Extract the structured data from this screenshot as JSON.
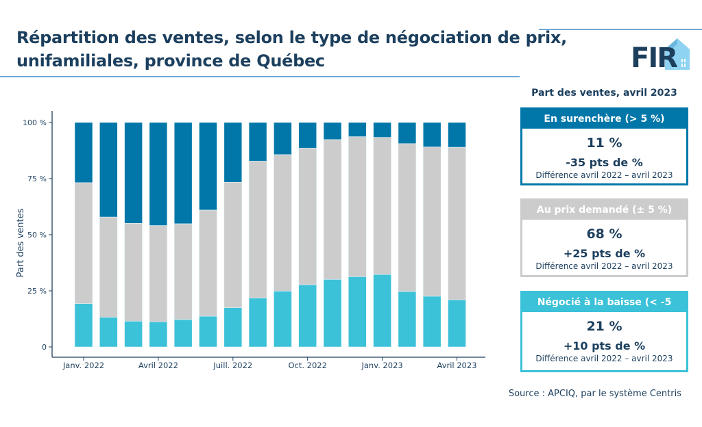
{
  "title_line1": "Répartition des ventes, selon le type de négociation de prix,",
  "title_line2": "unifamiliales, province de Québec",
  "logo_text": "FIR",
  "panel": {
    "title": "Part des ventes, avril 2023",
    "boxes": [
      {
        "header": "En surenchère (> 5 %)",
        "value": "11 %",
        "change": "-35 pts de %",
        "note": "Différence avril 2022 – avril 2023",
        "color": "#0077a8"
      },
      {
        "header": "Au prix demandé (± 5 %)",
        "value": "68 %",
        "change": "+25 pts de %",
        "note": "Différence avril 2022 – avril 2023",
        "color": "#cccccc"
      },
      {
        "header": "Négocié à la baisse (< -5",
        "value": "21 %",
        "change": "+10 pts de %",
        "note": "Différence avril 2022 – avril 2023",
        "color": "#3bc1d8"
      }
    ]
  },
  "source": "Source : APCIQ, par le système Centris",
  "chart_data": {
    "type": "bar",
    "stacked": true,
    "ylabel": "Part des ventes",
    "ylim": [
      0,
      100
    ],
    "yticks": [
      "0",
      "25 %",
      "50 %",
      "75 %",
      "100 %"
    ],
    "ytick_values": [
      0,
      25,
      50,
      75,
      100
    ],
    "categories": [
      "2022-01",
      "2022-02",
      "2022-03",
      "2022-04",
      "2022-05",
      "2022-06",
      "2022-07",
      "2022-08",
      "2022-09",
      "2022-10",
      "2022-11",
      "2022-12",
      "2023-01",
      "2023-02",
      "2023-03",
      "2023-04"
    ],
    "xtick_labels": [
      {
        "index": 0,
        "label": "Janv. 2022"
      },
      {
        "index": 3,
        "label": "Avril  2022"
      },
      {
        "index": 6,
        "label": "Juill. 2022"
      },
      {
        "index": 9,
        "label": "Oct. 2022"
      },
      {
        "index": 12,
        "label": "Janv. 2023"
      },
      {
        "index": 15,
        "label": "Avril 2023"
      }
    ],
    "series": [
      {
        "color": "#3bc1d8",
        "values": [
          19.3,
          13.2,
          11.5,
          11.2,
          12.2,
          13.7,
          17.5,
          21.8,
          24.9,
          27.7,
          30.1,
          31.3,
          32.3,
          24.7,
          22.6,
          21.0
        ]
      },
      {
        "color": "#cccccc",
        "values": [
          53.9,
          44.7,
          43.6,
          42.9,
          42.7,
          47.3,
          55.9,
          61.0,
          60.8,
          60.9,
          62.3,
          62.4,
          61.1,
          65.9,
          66.5,
          68.0
        ]
      },
      {
        "color": "#0077a8",
        "values": [
          26.8,
          42.1,
          44.9,
          45.9,
          45.1,
          39.0,
          26.6,
          17.2,
          14.3,
          11.4,
          7.6,
          6.3,
          6.6,
          9.4,
          10.9,
          11.0
        ]
      }
    ],
    "grid": false,
    "legend": "none"
  }
}
